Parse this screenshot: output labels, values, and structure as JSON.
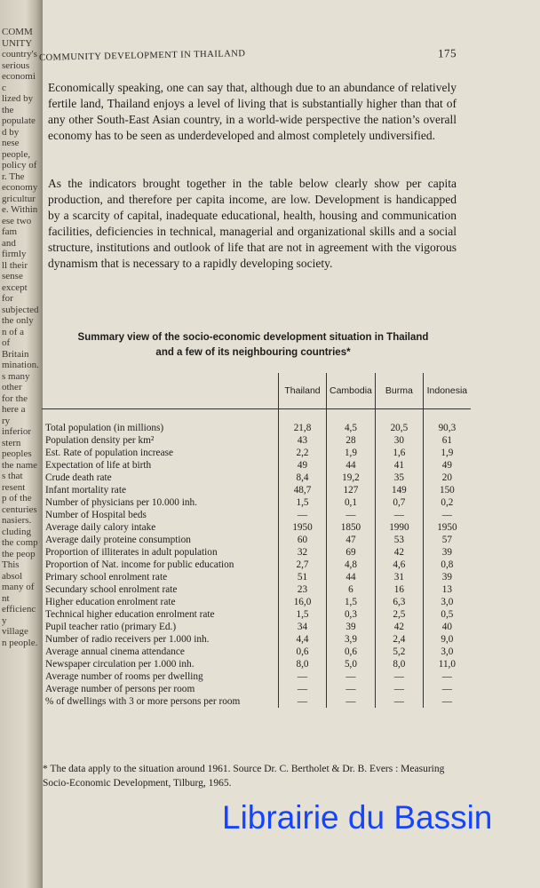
{
  "facing_page_fragments": [
    "COMMUNITY",
    "country's",
    "serious economic",
    "lized by the",
    "populated by",
    "nese people,",
    "policy of",
    "r. The economy",
    "griculture. Within",
    "ese two fam",
    "and firmly",
    "ll their sense",
    "except for",
    "subjected",
    "the only",
    "n of a",
    "of Britain",
    "mination.",
    "s many other",
    "for the",
    "here a",
    "ry inferior",
    "stern peoples",
    "the name",
    "s that",
    "resent",
    "p of the",
    "centuries",
    "nasiers.",
    "cluding",
    "the comp",
    "the peop",
    "This absol",
    "many of",
    "nt efficiency",
    "village",
    "n people."
  ],
  "header": {
    "running_title": "COMMUNITY DEVELOPMENT IN THAILAND",
    "page_number": "175"
  },
  "paragraphs": [
    "Economically speaking, one can say that, although due to an abundance of relatively fertile land, Thailand enjoys a level of living that is substantially higher than that of any other South-East Asian country, in a world-wide perspective the nation’s overall economy has to be seen as underdeveloped and almost completely undiversified.",
    "As the indicators brought together in the table below clearly show per capita production, and therefore per capita income, are low. Development is handicapped by a scarcity of capital, inadequate educational, health, housing and communication facilities, deficiencies in technical, managerial and organizational skills and a social structure, institutions and outlook of life that are not in agreement with the vigorous dynamism that is necessary to a rapidly developing society."
  ],
  "table": {
    "title_line1": "Summary view of the socio-economic development situation in Thailand",
    "title_line2": "and a few of its neighbouring countries*",
    "columns": [
      "Thailand",
      "Cambodia",
      "Burma",
      "Indonesia"
    ],
    "rows": [
      {
        "label": "Total population (in millions)",
        "values": [
          "21,8",
          "4,5",
          "20,5",
          "90,3"
        ]
      },
      {
        "label": "Population density per km²",
        "values": [
          "43",
          "28",
          "30",
          "61"
        ]
      },
      {
        "label": "Est. Rate of population increase",
        "values": [
          "2,2",
          "1,9",
          "1,6",
          "1,9"
        ]
      },
      {
        "label": "Expectation of life at birth",
        "values": [
          "49",
          "44",
          "41",
          "49"
        ]
      },
      {
        "label": "Crude death rate",
        "values": [
          "8,4",
          "19,2",
          "35",
          "20"
        ]
      },
      {
        "label": "Infant mortality rate",
        "values": [
          "48,7",
          "127",
          "149",
          "150"
        ]
      },
      {
        "label": "Number of physicians per 10.000 inh.",
        "values": [
          "1,5",
          "0,1",
          "0,7",
          "0,2"
        ]
      },
      {
        "label": "Number of Hospital beds",
        "values": [
          "—",
          "—",
          "—",
          "—"
        ]
      },
      {
        "label": "Average daily calory intake",
        "values": [
          "1950",
          "1850",
          "1990",
          "1950"
        ]
      },
      {
        "label": "Average daily proteine consumption",
        "values": [
          "60",
          "47",
          "53",
          "57"
        ]
      },
      {
        "label": "Proportion of illiterates in adult population",
        "values": [
          "32",
          "69",
          "42",
          "39"
        ]
      },
      {
        "label": "Proportion of Nat. income for public education",
        "values": [
          "2,7",
          "4,8",
          "4,6",
          "0,8"
        ]
      },
      {
        "label": "Primary school enrolment rate",
        "values": [
          "51",
          "44",
          "31",
          "39"
        ]
      },
      {
        "label": "Secundary school enrolment rate",
        "values": [
          "23",
          "6",
          "16",
          "13"
        ]
      },
      {
        "label": "Higher education enrolment rate",
        "values": [
          "16,0",
          "1,5",
          "6,3",
          "3,0"
        ]
      },
      {
        "label": "Technical higher education enrolment rate",
        "values": [
          "1,5",
          "0,3",
          "2,5",
          "0,5"
        ]
      },
      {
        "label": "Pupil teacher ratio (primary Ed.)",
        "values": [
          "34",
          "39",
          "42",
          "40"
        ]
      },
      {
        "label": "Number of radio receivers per 1.000 inh.",
        "values": [
          "4,4",
          "3,9",
          "2,4",
          "9,0"
        ]
      },
      {
        "label": "Average annual cinema attendance",
        "values": [
          "0,6",
          "0,6",
          "5,2",
          "3,0"
        ]
      },
      {
        "label": "Newspaper circulation per 1.000 inh.",
        "values": [
          "8,0",
          "5,0",
          "8,0",
          "11,0"
        ]
      },
      {
        "label": "Average number of rooms per dwelling",
        "values": [
          "—",
          "—",
          "—",
          "—"
        ]
      },
      {
        "label": "Average number of persons per room",
        "values": [
          "—",
          "—",
          "—",
          "—"
        ]
      },
      {
        "label": "% of dwellings with 3 or more persons per room",
        "values": [
          "—",
          "—",
          "—",
          "—"
        ]
      }
    ],
    "footnote": "* The data apply to the situation around 1961. Source Dr. C. Bertholet & Dr. B. Evers : Measuring Socio-Economic Development, Tilburg, 1965."
  },
  "watermark": {
    "text": "Librairie du Bassin",
    "color": "#1444ff"
  }
}
